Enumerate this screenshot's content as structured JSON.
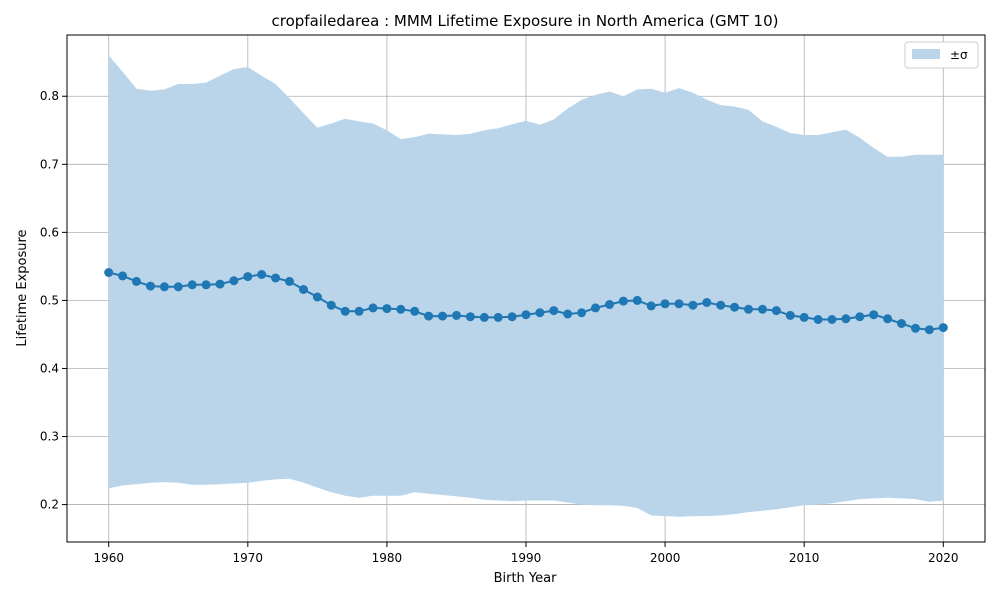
{
  "chart_data": {
    "type": "line",
    "title": "cropfailedarea : MMM Lifetime Exposure in North America (GMT 10)",
    "xlabel": "Birth Year",
    "ylabel": "Lifetime Exposure",
    "xlim": [
      1957,
      2023
    ],
    "ylim": [
      0.145,
      0.89
    ],
    "xticks": [
      "1960",
      "1970",
      "1980",
      "1990",
      "2000",
      "2010",
      "2020"
    ],
    "yticks": [
      "0.2",
      "0.3",
      "0.4",
      "0.5",
      "0.6",
      "0.7",
      "0.8"
    ],
    "grid": true,
    "legend_position": "top-right",
    "legend_label": "±σ",
    "colors": {
      "line": "#1f77b4",
      "band": "#bad5ea",
      "grid": "#b0b0b0"
    },
    "x": [
      1960,
      1961,
      1962,
      1963,
      1964,
      1965,
      1966,
      1967,
      1968,
      1969,
      1970,
      1971,
      1972,
      1973,
      1974,
      1975,
      1976,
      1977,
      1978,
      1979,
      1980,
      1981,
      1982,
      1983,
      1984,
      1985,
      1986,
      1987,
      1988,
      1989,
      1990,
      1991,
      1992,
      1993,
      1994,
      1995,
      1996,
      1997,
      1998,
      1999,
      2000,
      2001,
      2002,
      2003,
      2004,
      2005,
      2006,
      2007,
      2008,
      2009,
      2010,
      2011,
      2012,
      2013,
      2014,
      2015,
      2016,
      2017,
      2018,
      2019,
      2020
    ],
    "mean": [
      0.541,
      0.536,
      0.528,
      0.521,
      0.52,
      0.52,
      0.523,
      0.523,
      0.524,
      0.529,
      0.535,
      0.538,
      0.533,
      0.528,
      0.516,
      0.505,
      0.493,
      0.484,
      0.484,
      0.489,
      0.488,
      0.487,
      0.484,
      0.477,
      0.477,
      0.478,
      0.476,
      0.475,
      0.475,
      0.476,
      0.479,
      0.482,
      0.485,
      0.48,
      0.482,
      0.489,
      0.494,
      0.499,
      0.5,
      0.492,
      0.495,
      0.495,
      0.493,
      0.497,
      0.493,
      0.49,
      0.487,
      0.487,
      0.485,
      0.478,
      0.475,
      0.472,
      0.472,
      0.473,
      0.476,
      0.479,
      0.473,
      0.466,
      0.459,
      0.457,
      0.46
    ],
    "upper": [
      0.86,
      0.836,
      0.811,
      0.808,
      0.81,
      0.818,
      0.818,
      0.82,
      0.83,
      0.84,
      0.843,
      0.83,
      0.818,
      0.797,
      0.775,
      0.754,
      0.76,
      0.767,
      0.763,
      0.76,
      0.75,
      0.737,
      0.74,
      0.745,
      0.744,
      0.743,
      0.745,
      0.75,
      0.753,
      0.759,
      0.764,
      0.758,
      0.766,
      0.782,
      0.795,
      0.802,
      0.807,
      0.8,
      0.81,
      0.811,
      0.805,
      0.812,
      0.805,
      0.795,
      0.787,
      0.785,
      0.78,
      0.763,
      0.755,
      0.746,
      0.743,
      0.743,
      0.747,
      0.751,
      0.739,
      0.724,
      0.711,
      0.711,
      0.714,
      0.714,
      0.714
    ],
    "lower": [
      0.224,
      0.228,
      0.23,
      0.232,
      0.233,
      0.232,
      0.229,
      0.229,
      0.23,
      0.231,
      0.232,
      0.235,
      0.237,
      0.238,
      0.232,
      0.225,
      0.218,
      0.213,
      0.21,
      0.213,
      0.213,
      0.213,
      0.218,
      0.216,
      0.214,
      0.212,
      0.21,
      0.207,
      0.206,
      0.205,
      0.206,
      0.206,
      0.206,
      0.203,
      0.2,
      0.199,
      0.199,
      0.198,
      0.195,
      0.184,
      0.183,
      0.182,
      0.183,
      0.183,
      0.184,
      0.186,
      0.189,
      0.191,
      0.193,
      0.196,
      0.199,
      0.2,
      0.202,
      0.205,
      0.208,
      0.209,
      0.21,
      0.209,
      0.208,
      0.204,
      0.206
    ]
  }
}
